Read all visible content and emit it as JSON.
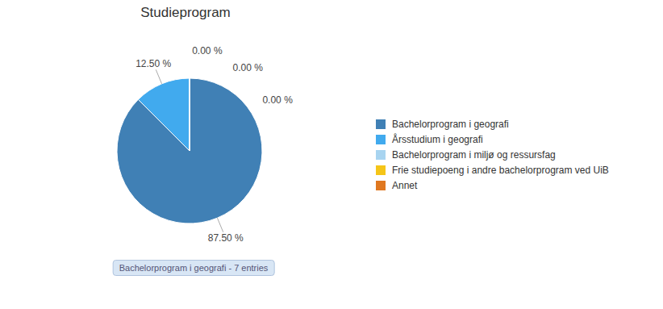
{
  "chart_data": {
    "type": "pie",
    "title": "Studieprogram",
    "categories": [
      "Bachelorprogram i geografi",
      "Årsstudium i geografi",
      "Bachelorprogram i miljø og ressursfag",
      "Frie studiepoeng i andre bachelorprogram ved UiB",
      "Annet"
    ],
    "values": [
      87.5,
      12.5,
      0.001,
      0.001,
      0.001
    ],
    "value_labels": [
      "87.50 %",
      "12.50 %",
      "0.00 %",
      "0.00 %",
      "0.00 %"
    ],
    "colors": [
      "#4080b5",
      "#41aaee",
      "#a8d4f0",
      "#f5c518",
      "#e07820"
    ],
    "data_labels": true,
    "legend": "right",
    "annotations": [
      "Bachelorprogram i geografi - 7 entries"
    ]
  }
}
